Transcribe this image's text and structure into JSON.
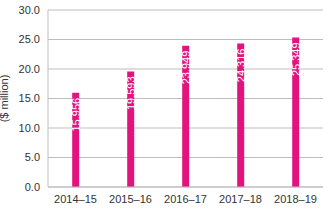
{
  "chart_data": {
    "type": "bar",
    "y_label": "($ million)",
    "categories": [
      "2014–15",
      "2015–16",
      "2016–17",
      "2017–18",
      "2018–19"
    ],
    "values": [
      15.956,
      19.593,
      23.949,
      24.316,
      25.349
    ],
    "color": "#e2137d",
    "ylim": [
      0,
      30
    ],
    "yticks": [
      {
        "value": 0,
        "label": "0.0"
      },
      {
        "value": 5,
        "label": "5.0"
      },
      {
        "value": 10,
        "label": "10.0"
      },
      {
        "value": 15,
        "label": "15.0"
      },
      {
        "value": 20,
        "label": "20.0"
      },
      {
        "value": 25,
        "label": "25.0"
      },
      {
        "value": 30,
        "label": "30.0"
      }
    ],
    "grid": true,
    "data_labels": true
  }
}
